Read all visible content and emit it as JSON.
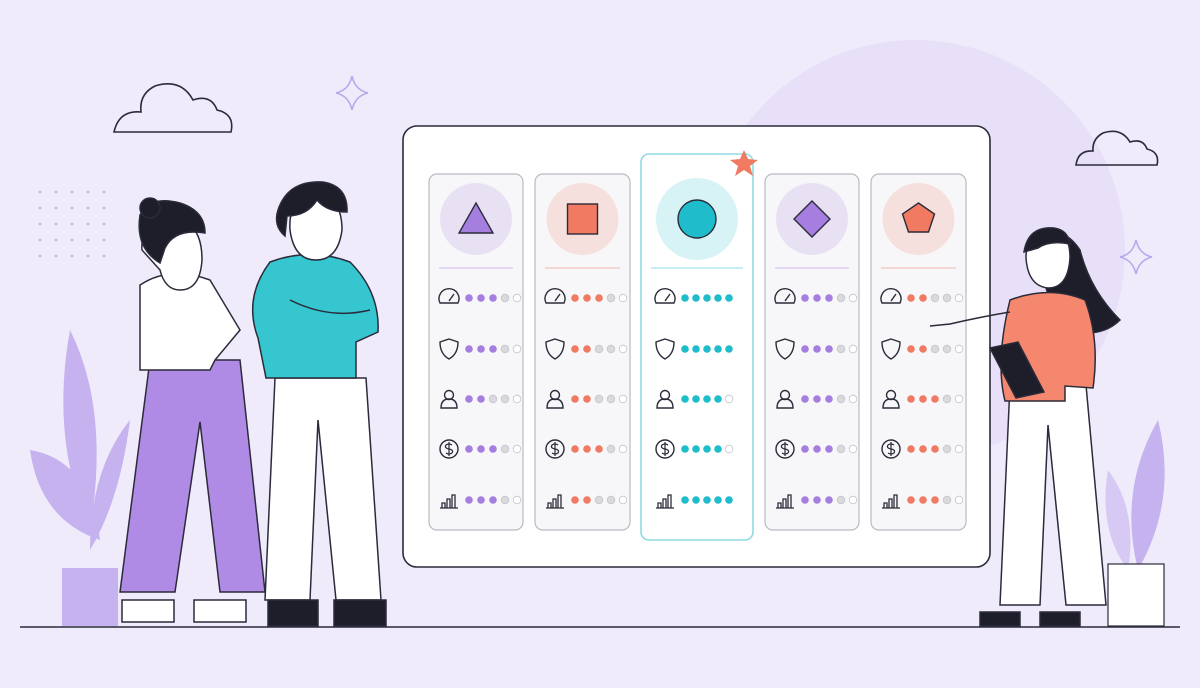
{
  "board": {
    "dots_per_row": 5,
    "empty_dot_color": "#d9d9de",
    "columns": [
      {
        "color": "#a57ee0",
        "ratings": [
          3,
          3,
          2,
          3,
          3
        ]
      },
      {
        "color": "#f07a62",
        "ratings": [
          3,
          2,
          2,
          3,
          2
        ]
      },
      {
        "color": "#1fbccc",
        "ratings": [
          5,
          5,
          4,
          4,
          5
        ]
      },
      {
        "color": "#a57ee0",
        "ratings": [
          3,
          3,
          3,
          3,
          3
        ]
      },
      {
        "color": "#f07a62",
        "ratings": [
          2,
          2,
          3,
          3,
          3
        ]
      }
    ]
  }
}
